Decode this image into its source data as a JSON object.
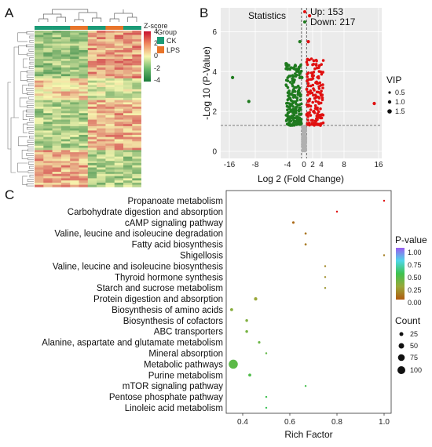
{
  "panels": {
    "a": "A",
    "b": "B",
    "c": "C"
  },
  "colors": {
    "ck": "#1b9a76",
    "lps": "#e8742a",
    "heat_low": "#1a7a3a",
    "heat_mid": "#f7f7b0",
    "heat_high": "#c8102e",
    "up": "#e01010",
    "down": "#1e7a1e",
    "ns": "#b0b0b0",
    "pv_low": "#b05a10",
    "pv_high": "#9a5cf0"
  },
  "heatmap": {
    "legend": {
      "zscore_title": "Z-score",
      "zscore_ticks": [
        "4",
        "2",
        "0",
        "-2",
        "-4"
      ],
      "group_title": "Group",
      "groups": [
        "CK",
        "LPS"
      ]
    }
  },
  "volcano": {
    "title": "Statistics",
    "up_label": "Up: 153",
    "down_label": "Down: 217",
    "vip_title": "VIP",
    "vip_entries": [
      "0.5",
      "1.0",
      "1.5"
    ]
  },
  "enrichment": {
    "pvalue_title": "P-value",
    "pvalue_ticks": [
      "1.00",
      "0.75",
      "0.50",
      "0.25",
      "0.00"
    ],
    "count_title": "Count",
    "count_entries": [
      "25",
      "50",
      "75",
      "100"
    ]
  },
  "chart_data": [
    {
      "type": "heatmap",
      "title": "",
      "groups": [
        "CK",
        "LPS"
      ],
      "zscore_range": [
        -4,
        4
      ]
    },
    {
      "type": "scatter",
      "title": "Statistics",
      "xlabel": "Log 2 (Fold Change)",
      "ylabel": "-Log 10 (P-Value)",
      "x_ticks": [
        "-16",
        "-8",
        "-4",
        "0",
        "2",
        "4",
        "8",
        "16"
      ],
      "y_ticks": [
        "0",
        "2",
        "4",
        "6"
      ],
      "xlim": [
        -16,
        16
      ],
      "ylim": [
        0,
        7
      ],
      "threshold_y": 1.3,
      "series": [
        {
          "name": "Up: 153",
          "count": 153
        },
        {
          "name": "Down: 217",
          "count": 217
        }
      ],
      "labeled_points": [
        {
          "x": -15,
          "y": 3.7,
          "group": "down"
        },
        {
          "x": -10,
          "y": 2.5,
          "group": "down"
        },
        {
          "x": -1,
          "y": 5.5,
          "group": "down"
        },
        {
          "x": -0.5,
          "y": 3.7,
          "group": "down"
        },
        {
          "x": 1.3,
          "y": 6.8,
          "group": "up"
        },
        {
          "x": 1,
          "y": 5.5,
          "group": "up"
        },
        {
          "x": 15,
          "y": 2.4,
          "group": "up"
        }
      ]
    },
    {
      "type": "scatter",
      "title": "",
      "xlabel": "Rich Factor",
      "ylabel": "",
      "x_ticks": [
        "0.4",
        "0.6",
        "0.8",
        "1.0"
      ],
      "xlim": [
        0.33,
        1.03
      ],
      "categories": [
        "Propanoate metabolism",
        "Carbohydrate digestion and absorption",
        "cAMP signaling pathway",
        "Valine, leucine and isoleucine degradation",
        "Fatty acid biosynthesis",
        "Shigellosis",
        "Valine, leucine and isoleucine biosynthesis",
        "Thyroid hormone synthesis",
        "Starch and sucrose metabolism",
        "Protein digestion and absorption",
        "Biosynthesis of amino acids",
        "Biosynthesis of cofactors",
        "ABC transporters",
        "Alanine, aspartate and glutamate metabolism",
        "Mineral absorption",
        "Metabolic pathways",
        "Purine metabolism",
        "mTOR signaling pathway",
        "Pentose phosphate pathway",
        "Linoleic acid metabolism"
      ],
      "rich_factor": [
        1.0,
        0.8,
        0.615,
        0.667,
        0.667,
        1.0,
        0.75,
        0.75,
        0.75,
        0.455,
        0.353,
        0.417,
        0.417,
        0.47,
        0.5,
        0.36,
        0.43,
        0.667,
        0.5,
        0.5
      ],
      "p_value": [
        0.02,
        0.03,
        0.05,
        0.08,
        0.1,
        0.12,
        0.15,
        0.17,
        0.2,
        0.25,
        0.3,
        0.32,
        0.35,
        0.38,
        0.4,
        0.42,
        0.45,
        0.48,
        0.5,
        0.52
      ],
      "count": [
        4,
        5,
        8,
        6,
        6,
        1,
        3,
        3,
        3,
        15,
        12,
        10,
        10,
        8,
        5,
        110,
        12,
        2,
        5,
        5
      ]
    }
  ]
}
